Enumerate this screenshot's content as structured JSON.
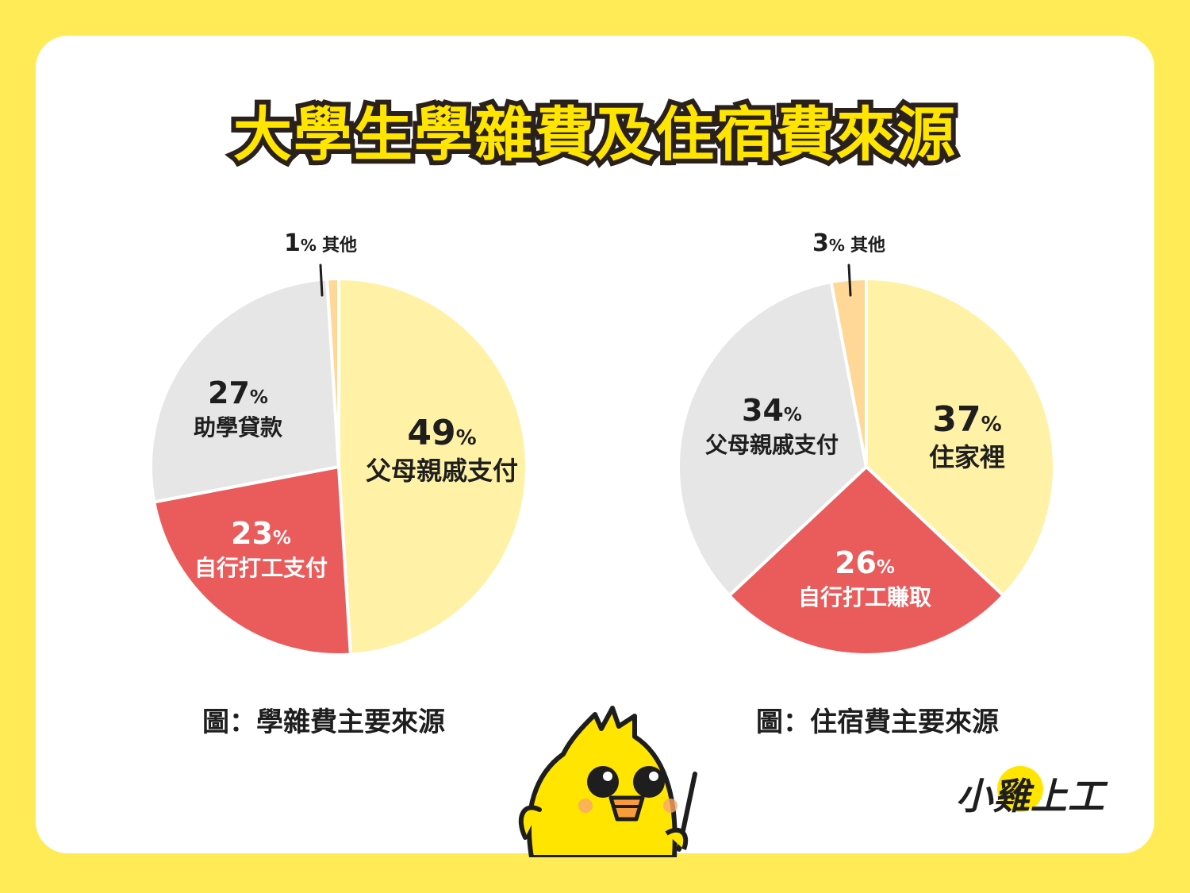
{
  "title": "大學生學雜費及住宿費來源",
  "colors": {
    "background": "#FFEB55",
    "card": "#FFFFFF",
    "light_yellow": "#FFF2A6",
    "red": "#EA5B5B",
    "light_gray": "#E6E6E6",
    "peach": "#FFD897"
  },
  "captions": {
    "left": "圖：學雜費主要來源",
    "right": "圖：住宿費主要來源"
  },
  "percent_sign": "%",
  "brand": "小雞上工",
  "chart_data": [
    {
      "type": "pie",
      "title": "圖：學雜費主要來源",
      "slices": [
        {
          "label": "父母親戚支付",
          "value": 49,
          "color": "#FFF2A6",
          "text_color": "#1E1E1E"
        },
        {
          "label": "自行打工支付",
          "value": 23,
          "color": "#EA5B5B",
          "text_color": "#FFFFFF"
        },
        {
          "label": "助學貸款",
          "value": 27,
          "color": "#E6E6E6",
          "text_color": "#1E1E1E"
        },
        {
          "label": "其他",
          "value": 1,
          "color": "#FFD897",
          "text_color": "#1E1E1E"
        }
      ]
    },
    {
      "type": "pie",
      "title": "圖：住宿費主要來源",
      "slices": [
        {
          "label": "住家裡",
          "value": 37,
          "color": "#FFF2A6",
          "text_color": "#1E1E1E"
        },
        {
          "label": "自行打工賺取",
          "value": 26,
          "color": "#EA5B5B",
          "text_color": "#FFFFFF"
        },
        {
          "label": "父母親戚支付",
          "value": 34,
          "color": "#E6E6E6",
          "text_color": "#1E1E1E"
        },
        {
          "label": "其他",
          "value": 3,
          "color": "#FFD897",
          "text_color": "#1E1E1E"
        }
      ]
    }
  ]
}
